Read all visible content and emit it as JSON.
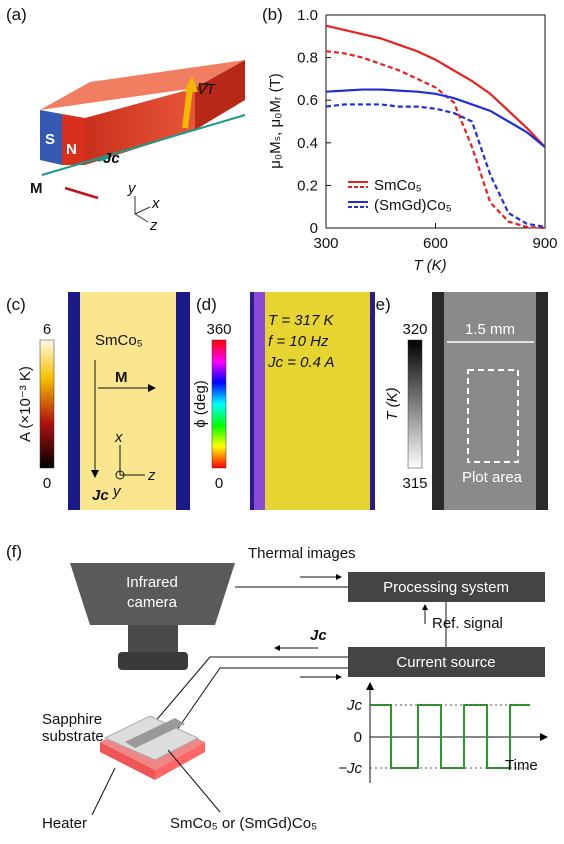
{
  "panel_labels": [
    "(a)",
    "(b)",
    "(c)",
    "(d)",
    "(e)",
    "(f)"
  ],
  "panel_a": {
    "gradient": "∇T",
    "pole_s": "S",
    "pole_n": "N",
    "magnetization": "M",
    "current": "Jc",
    "axes": [
      "y",
      "x",
      "z"
    ]
  },
  "chart_data": {
    "type": "line",
    "x_label": "T (K)",
    "y_label": "μ₀Mₛ, μ₀Mᵣ (T)",
    "x": [
      300,
      350,
      400,
      450,
      500,
      550,
      600,
      650,
      700,
      750,
      800,
      850,
      900
    ],
    "series": [
      {
        "name": "SmCo₅",
        "color": "#e8211f",
        "values": [
          0.95,
          0.93,
          0.91,
          0.89,
          0.86,
          0.83,
          0.79,
          0.74,
          0.69,
          0.63,
          0.55,
          0.47,
          0.38
        ],
        "values_r": [
          0.83,
          0.82,
          0.8,
          0.77,
          0.74,
          0.7,
          0.66,
          0.59,
          0.38,
          0.12,
          0.03,
          0.005,
          0
        ]
      },
      {
        "name": "(SmGd)Co₅",
        "color": "#1f2fd6",
        "values": [
          0.64,
          0.645,
          0.65,
          0.65,
          0.645,
          0.64,
          0.63,
          0.61,
          0.58,
          0.55,
          0.5,
          0.45,
          0.38
        ],
        "values_r": [
          0.57,
          0.58,
          0.58,
          0.58,
          0.57,
          0.57,
          0.56,
          0.54,
          0.5,
          0.25,
          0.07,
          0.02,
          0.005
        ]
      }
    ],
    "xlim": [
      300,
      900
    ],
    "xticks": [
      300,
      600,
      900
    ],
    "ylim": [
      0,
      1
    ],
    "yticks": [
      0,
      {
        "value": 0.2,
        "label": "0.2"
      },
      {
        "value": 0.4,
        "label": "0.4"
      },
      {
        "value": 0.6,
        "label": "0.6"
      },
      {
        "value": 0.8,
        "label": "0.8"
      },
      {
        "value": 1,
        "label": "1.0"
      }
    ],
    "grid": false
  },
  "panel_c": {
    "colorbar_max": "6",
    "colorbar_min": "0",
    "colorbar_label": "A (×10⁻³ K)",
    "sample": "SmCo₅",
    "magnetization": "M",
    "current": "Jc",
    "axes": [
      "x",
      "z",
      "y"
    ]
  },
  "panel_d": {
    "colorbar_max": "360",
    "colorbar_min": "0",
    "colorbar_label": "ϕ (deg)",
    "conditions": [
      "T = 317 K",
      "f = 10 Hz",
      "Jc = 0.4 A"
    ]
  },
  "panel_e": {
    "colorbar_max": "320",
    "colorbar_min": "315",
    "colorbar_label": "T (K)",
    "scale": "1.5 mm",
    "region": "Plot area"
  },
  "panel_f": {
    "thermal": "Thermal images",
    "camera": [
      "Infrared",
      "camera"
    ],
    "processing": "Processing system",
    "reference": "Ref. signal",
    "current": "Jc",
    "source": "Current source",
    "substrate": [
      "Sapphire",
      "substrate"
    ],
    "heater": "Heater",
    "sample": "SmCo₅ or (SmGd)Co₅",
    "wave": {
      "high": "Jc",
      "zero": "0",
      "low": "−Jc",
      "time": "Time"
    }
  }
}
